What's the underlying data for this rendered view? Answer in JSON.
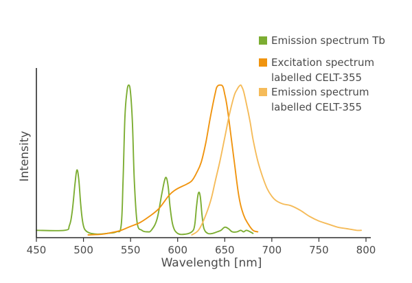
{
  "chart_data": {
    "type": "line",
    "title": "",
    "xlabel": "Wavelength [nm]",
    "ylabel": "Intensity",
    "xlim": [
      450,
      800
    ],
    "ylim": [
      0,
      1
    ],
    "xticks": [
      450,
      500,
      550,
      600,
      650,
      700,
      750,
      800
    ],
    "grid": false,
    "legend_position": "top-right",
    "series": [
      {
        "name": "Emission spectrum Tb",
        "color": "#7cad32",
        "x": [
          450,
          480,
          485,
          488,
          491,
          493,
          495,
          497,
          499,
          501,
          504,
          508,
          515,
          525,
          535,
          540,
          542,
          544,
          546,
          548,
          550,
          552,
          554,
          557,
          562,
          568,
          572,
          578,
          583,
          586,
          588,
          590,
          592,
          595,
          600,
          608,
          615,
          618,
          620,
          622,
          624,
          626,
          628,
          632,
          637,
          642,
          646,
          650,
          654,
          658,
          663,
          667,
          670,
          673,
          677,
          680
        ],
        "y": [
          0.03,
          0.03,
          0.06,
          0.15,
          0.33,
          0.42,
          0.36,
          0.2,
          0.09,
          0.04,
          0.02,
          0.01,
          0.005,
          0.01,
          0.02,
          0.06,
          0.35,
          0.76,
          0.92,
          0.97,
          0.92,
          0.72,
          0.35,
          0.08,
          0.03,
          0.02,
          0.03,
          0.1,
          0.26,
          0.35,
          0.37,
          0.31,
          0.18,
          0.06,
          0.01,
          0.005,
          0.02,
          0.06,
          0.18,
          0.27,
          0.25,
          0.12,
          0.04,
          0.01,
          0.01,
          0.02,
          0.03,
          0.05,
          0.04,
          0.02,
          0.02,
          0.03,
          0.02,
          0.03,
          0.02,
          0.01
        ]
      },
      {
        "name": "Excitation spectrum labelled CELT-355",
        "color": "#f0940f",
        "x": [
          505,
          520,
          530,
          540,
          550,
          560,
          570,
          580,
          590,
          595,
          600,
          610,
          615,
          620,
          625,
          630,
          635,
          640,
          642,
          645,
          648,
          650,
          652,
          655,
          660,
          665,
          670,
          675,
          680,
          685
        ],
        "y": [
          0,
          0.005,
          0.015,
          0.03,
          0.055,
          0.08,
          0.12,
          0.17,
          0.25,
          0.28,
          0.3,
          0.33,
          0.35,
          0.4,
          0.47,
          0.6,
          0.77,
          0.92,
          0.96,
          0.97,
          0.96,
          0.91,
          0.85,
          0.72,
          0.48,
          0.25,
          0.13,
          0.07,
          0.03,
          0.02
        ]
      },
      {
        "name": "Emission spectrum labelled CELT-355",
        "color": "#f5bb59",
        "x": [
          615,
          622,
          628,
          635,
          640,
          645,
          650,
          655,
          660,
          663,
          665,
          667,
          668,
          670,
          673,
          677,
          680,
          685,
          690,
          695,
          700,
          705,
          712,
          720,
          730,
          740,
          750,
          760,
          770,
          780,
          790,
          795
        ],
        "y": [
          0,
          0.03,
          0.1,
          0.22,
          0.35,
          0.48,
          0.63,
          0.78,
          0.9,
          0.94,
          0.96,
          0.97,
          0.96,
          0.93,
          0.85,
          0.73,
          0.62,
          0.48,
          0.38,
          0.3,
          0.25,
          0.22,
          0.2,
          0.19,
          0.16,
          0.12,
          0.09,
          0.07,
          0.05,
          0.04,
          0.03,
          0.03
        ]
      }
    ]
  },
  "legend": [
    {
      "lines": [
        "Emission spectrum Tb"
      ],
      "color": "#7cad32"
    },
    {
      "lines": [
        "Excitation spectrum",
        "labelled CELT-355"
      ],
      "color": "#f0940f"
    },
    {
      "lines": [
        "Emission spectrum",
        "labelled CELT-355"
      ],
      "color": "#f5bb59"
    }
  ]
}
